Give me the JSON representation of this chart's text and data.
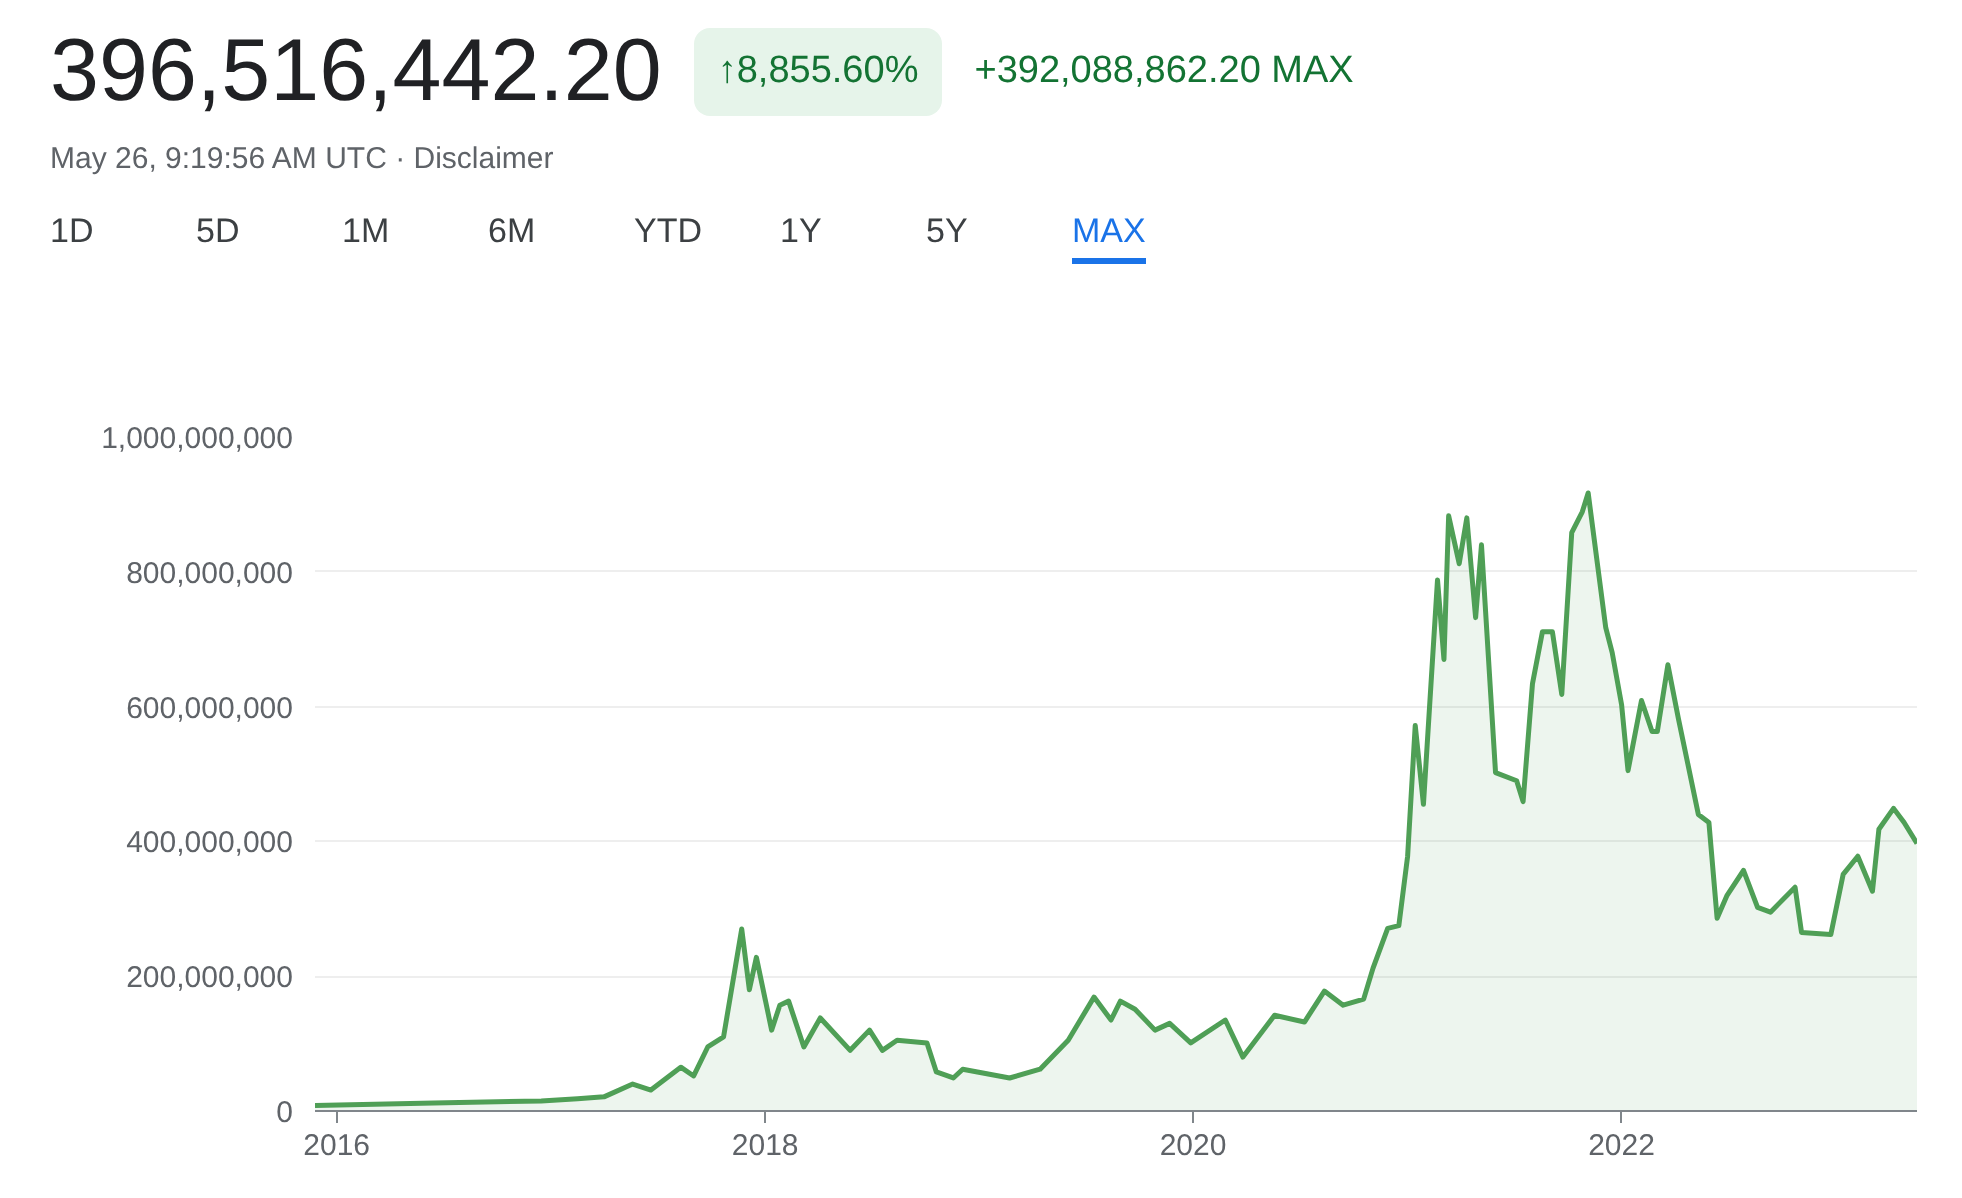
{
  "chart_data": {
    "type": "area",
    "title": "396,516,442.20",
    "subtitle": "May 26, 9:19:56 AM UTC · Disclaimer",
    "annotations": [
      "↑8,855.60%",
      "+392,088,862.20 MAX",
      "1D",
      "5D",
      "1M",
      "6M",
      "YTD",
      "1Y",
      "5Y",
      "MAX"
    ],
    "x": [
      "2015-11-25",
      "2016-06-15",
      "2016-12-15",
      "2017-02-15",
      "2017-04-01",
      "2017-05-20",
      "2017-06-20",
      "2017-08-10",
      "2017-09-01",
      "2017-09-25",
      "2017-10-22",
      "2017-11-22",
      "2017-12-05",
      "2017-12-17",
      "2018-01-12",
      "2018-01-26",
      "2018-02-10",
      "2018-03-08",
      "2018-04-05",
      "2018-05-26",
      "2018-06-28",
      "2018-07-20",
      "2018-08-14",
      "2018-10-04",
      "2018-10-20",
      "2018-11-18",
      "2018-12-04",
      "2019-02-22",
      "2019-04-15",
      "2019-06-02",
      "2019-07-16",
      "2019-08-14",
      "2019-08-30",
      "2019-09-24",
      "2019-10-28",
      "2019-11-22",
      "2019-12-28",
      "2020-02-25",
      "2020-03-26",
      "2020-05-19",
      "2020-07-09",
      "2020-08-12",
      "2020-09-13",
      "2020-10-18",
      "2020-11-03",
      "2020-11-28",
      "2020-12-17",
      "2021-01-01",
      "2021-01-14",
      "2021-01-28",
      "2021-02-21",
      "2021-03-04",
      "2021-03-12",
      "2021-03-30",
      "2021-04-12",
      "2021-04-27",
      "2021-05-07",
      "2021-05-31",
      "2021-07-06",
      "2021-07-17",
      "2021-08-02",
      "2021-08-19",
      "2021-09-05",
      "2021-09-21",
      "2021-10-08",
      "2021-10-26",
      "2021-11-05",
      "2021-12-05",
      "2021-12-16",
      "2022-01-01",
      "2022-01-12",
      "2022-02-04",
      "2022-02-22",
      "2022-03-03",
      "2022-03-21",
      "2022-04-08",
      "2022-05-12",
      "2022-05-30",
      "2022-06-13",
      "2022-06-30",
      "2022-07-28",
      "2022-08-21",
      "2022-09-12",
      "2022-10-24",
      "2022-11-04",
      "2022-12-24",
      "2023-01-14",
      "2023-02-08",
      "2023-03-05",
      "2023-03-16",
      "2023-04-10",
      "2023-04-28",
      "2023-05-20"
    ],
    "series": [
      {
        "color": "#4f9f56",
        "values": [
          8000000,
          12000000,
          15000000,
          18000000,
          21000000,
          40000000,
          31000000,
          65000000,
          52000000,
          95000000,
          110000000,
          270000000,
          180000000,
          228000000,
          120000000,
          157000000,
          163000000,
          95000000,
          138000000,
          90000000,
          120000000,
          90000000,
          105000000,
          101000000,
          58000000,
          49000000,
          62000000,
          49000000,
          62000000,
          105000000,
          169000000,
          135000000,
          163000000,
          151000000,
          120000000,
          130000000,
          101000000,
          135000000,
          80000000,
          142000000,
          132000000,
          178000000,
          157000000,
          166000000,
          212000000,
          271000000,
          275000000,
          378000000,
          572000000,
          455000000,
          788000000,
          670000000,
          883000000,
          812000000,
          880000000,
          732000000,
          840000000,
          502000000,
          490000000,
          459000000,
          634000000,
          711000000,
          711000000,
          618000000,
          858000000,
          889000000,
          917000000,
          717000000,
          680000000,
          603000000,
          505000000,
          609000000,
          563000000,
          563000000,
          662000000,
          582000000,
          440000000,
          428000000,
          286000000,
          320000000,
          357000000,
          302000000,
          295000000,
          332000000,
          265000000,
          262000000,
          351000000,
          378000000,
          326000000,
          418000000,
          449000000,
          428000000,
          397000000
        ]
      }
    ],
    "xlim": [
      "2015-11-25",
      "2023-05-20"
    ],
    "xticks": [
      {
        "value": "2016",
        "label": "2016"
      },
      {
        "value": "2018",
        "label": "2018"
      },
      {
        "value": "2020",
        "label": "2020"
      },
      {
        "value": "2022",
        "label": "2022"
      }
    ],
    "ylim": [
      0,
      1000000000
    ],
    "yticks": [
      {
        "value": 0,
        "label": "0"
      },
      {
        "value": 200000000,
        "label": "200,000,000"
      },
      {
        "value": 400000000,
        "label": "400,000,000"
      },
      {
        "value": 600000000,
        "label": "600,000,000"
      },
      {
        "value": 800000000,
        "label": "800,000,000"
      },
      {
        "value": 1000000000,
        "label": "1,000,000,000"
      }
    ],
    "grid": "y"
  }
}
